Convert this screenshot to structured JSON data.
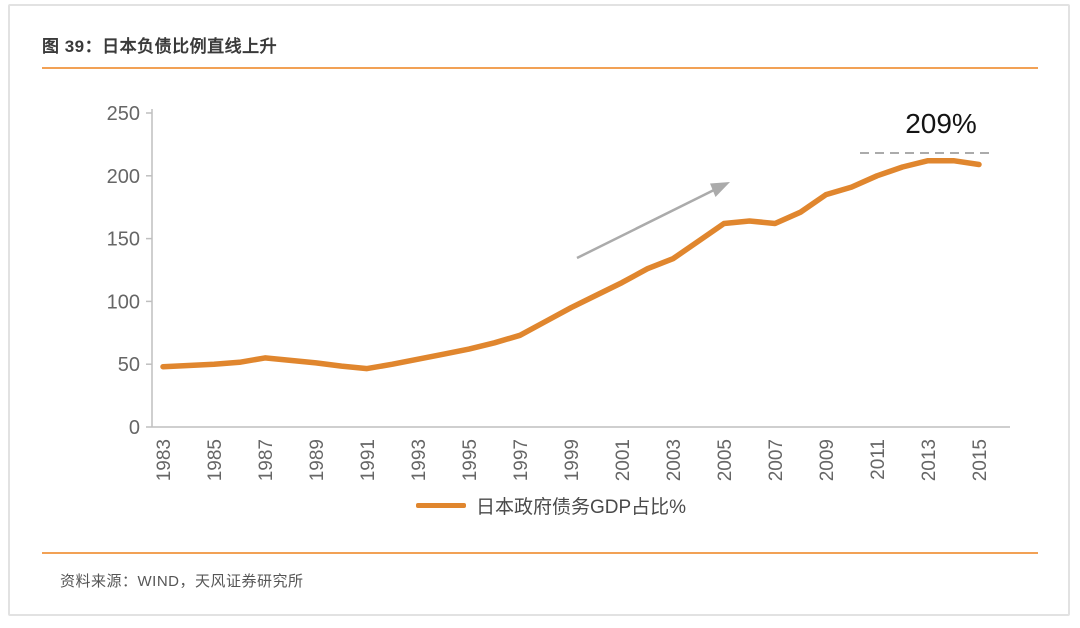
{
  "header": {
    "figure_label": "图 39：日本负债比例直线上升"
  },
  "footer": {
    "source": "资料来源：WIND，天风证券研究所"
  },
  "legend": {
    "label": "日本政府债务GDP占比%"
  },
  "annotation": {
    "label": "209%"
  },
  "chart_data": {
    "type": "line",
    "title": "图 39：日本负债比例直线上升",
    "x": [
      1983,
      1984,
      1985,
      1986,
      1987,
      1988,
      1989,
      1990,
      1991,
      1992,
      1993,
      1994,
      1995,
      1996,
      1997,
      1998,
      1999,
      2000,
      2001,
      2002,
      2003,
      2004,
      2005,
      2006,
      2007,
      2008,
      2009,
      2010,
      2011,
      2012,
      2013,
      2014,
      2015
    ],
    "series": [
      {
        "name": "日本政府债务GDP占比%",
        "values": [
          48,
          49,
          50,
          51.5,
          55,
          53,
          51,
          48.5,
          46.5,
          50,
          54,
          58,
          62,
          67,
          73,
          84,
          95,
          105,
          115,
          126,
          134,
          148,
          162,
          164,
          162,
          171,
          185,
          191,
          200,
          207,
          212,
          212,
          209
        ]
      }
    ],
    "xlabel": "",
    "ylabel": "",
    "ylim": [
      0,
      250
    ],
    "yticks": [
      0,
      50,
      100,
      150,
      200,
      250
    ],
    "xtick_labels": [
      "1983",
      "1985",
      "1987",
      "1989",
      "1991",
      "1993",
      "1995",
      "1997",
      "1999",
      "2001",
      "2003",
      "2005",
      "2007",
      "2009",
      "2011",
      "2013",
      "2015"
    ],
    "grid": false,
    "legend_position": "bottom",
    "annotations": {
      "peak_label": "209%",
      "dashed_reference_level": 215,
      "trend_arrow": "up-right"
    },
    "colors": {
      "line": "#e0862e",
      "accent_rule": "#f2a155",
      "axis": "#bfbfbf",
      "tick_text": "#666666",
      "gray_annotation": "#ababab",
      "annotation_text": "#141414"
    }
  }
}
